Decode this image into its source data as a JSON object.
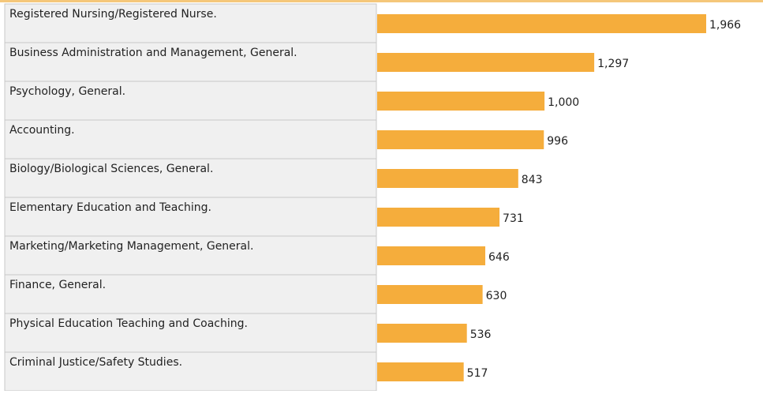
{
  "chart_data": {
    "type": "bar",
    "orientation": "horizontal",
    "categories": [
      "Registered Nursing/Registered Nurse.",
      "Business Administration and Management, General.",
      "Psychology, General.",
      "Accounting.",
      "Biology/Biological Sciences, General.",
      "Elementary Education and Teaching.",
      "Marketing/Marketing Management, General.",
      "Finance, General.",
      "Physical Education Teaching and Coaching.",
      "Criminal Justice/Safety Studies."
    ],
    "values": [
      1966,
      1297,
      1000,
      996,
      843,
      731,
      646,
      630,
      536,
      517
    ],
    "value_labels": [
      "1,966",
      "1,297",
      "1,000",
      "996",
      "843",
      "731",
      "646",
      "630",
      "536",
      "517"
    ],
    "color": "#f5ad3c"
  }
}
